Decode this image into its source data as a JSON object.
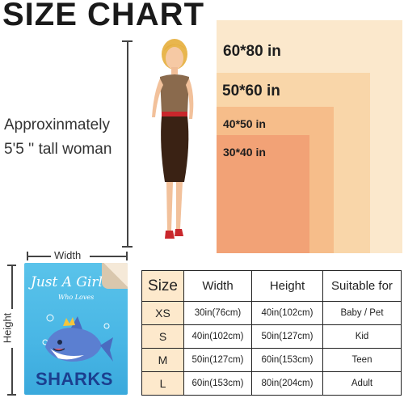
{
  "title": "SIZE CHART",
  "description": {
    "line1": "Approxinmately",
    "line2": "5'5 '' tall woman"
  },
  "sizes_visual": [
    {
      "label": "60*80 in",
      "color": "#fbe8cc"
    },
    {
      "label": "50*60 in",
      "color": "#f9d6a9"
    },
    {
      "label": "40*50 in",
      "color": "#f6bd8a"
    },
    {
      "label": "30*40 in",
      "color": "#f2a276"
    }
  ],
  "blanket": {
    "text_main": "Just A Girl",
    "text_sub": "Who Loves",
    "text_bottom": "SHARKS"
  },
  "dimension_labels": {
    "width": "Width",
    "height": "Height"
  },
  "table": {
    "headers": [
      "Size",
      "Width",
      "Height",
      "Suitable for"
    ],
    "rows": [
      {
        "size": "XS",
        "width": "30in(76cm)",
        "height": "40in(102cm)",
        "suitable": "Baby / Pet"
      },
      {
        "size": "S",
        "width": "40in(102cm)",
        "height": "50in(127cm)",
        "suitable": "Kid"
      },
      {
        "size": "M",
        "width": "50in(127cm)",
        "height": "60in(153cm)",
        "suitable": "Teen"
      },
      {
        "size": "L",
        "width": "60in(153cm)",
        "height": "80in(204cm)",
        "suitable": "Adult"
      }
    ]
  }
}
